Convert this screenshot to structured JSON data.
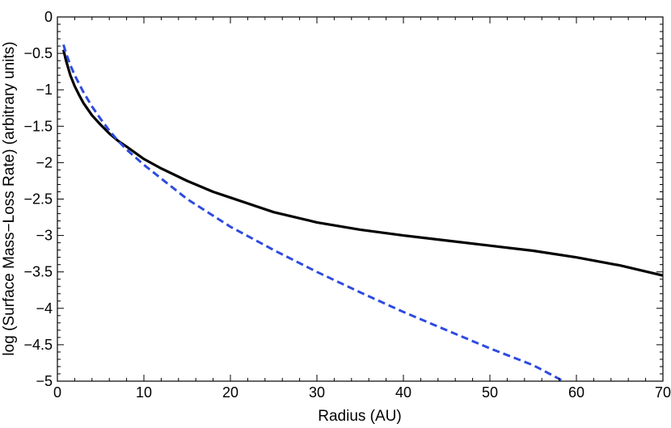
{
  "chart_data": {
    "type": "line",
    "xlabel": "Radius (AU)",
    "ylabel": "log (Surface Mass−Loss Rate) (arbitrary units)",
    "xlim": [
      0,
      70
    ],
    "ylim": [
      -5,
      0
    ],
    "x_ticks": [
      0,
      10,
      20,
      30,
      40,
      50,
      60,
      70
    ],
    "x_tick_labels": [
      "0",
      "10",
      "20",
      "30",
      "40",
      "50",
      "60",
      "70"
    ],
    "y_ticks": [
      0,
      -0.5,
      -1,
      -1.5,
      -2,
      -2.5,
      -3,
      -3.5,
      -4,
      -4.5,
      -5
    ],
    "y_tick_labels": [
      "0",
      "−0.5",
      "−1",
      "−1.5",
      "−2",
      "−2.5",
      "−3",
      "−3.5",
      "−4",
      "−4.5",
      "−5"
    ],
    "grid": false,
    "series": [
      {
        "style": "solid",
        "color": "#000000",
        "x": [
          0.7,
          1.0,
          1.5,
          2.0,
          2.5,
          3.0,
          4.0,
          5.0,
          6.0,
          7.0,
          8.0,
          10.0,
          12.0,
          15.0,
          18.0,
          20.0,
          25.0,
          30.0,
          35.0,
          40.0,
          45.0,
          50.0,
          55.0,
          60.0,
          65.0,
          70.0
        ],
        "y": [
          -0.45,
          -0.6,
          -0.8,
          -0.95,
          -1.07,
          -1.18,
          -1.35,
          -1.48,
          -1.6,
          -1.7,
          -1.78,
          -1.95,
          -2.08,
          -2.25,
          -2.4,
          -2.48,
          -2.68,
          -2.82,
          -2.92,
          -3.0,
          -3.07,
          -3.14,
          -3.21,
          -3.3,
          -3.41,
          -3.55
        ]
      },
      {
        "style": "dashed",
        "color": "#2e4be0",
        "x": [
          0.7,
          1.0,
          1.5,
          2.0,
          3.0,
          4.0,
          5.0,
          6.0,
          7.0,
          8.0,
          10.0,
          15.0,
          20.0,
          25.0,
          30.0,
          35.0,
          40.0,
          45.0,
          50.0,
          55.0,
          58.5
        ],
        "y": [
          -0.38,
          -0.5,
          -0.66,
          -0.8,
          -1.03,
          -1.23,
          -1.4,
          -1.56,
          -1.7,
          -1.82,
          -2.03,
          -2.5,
          -2.88,
          -3.2,
          -3.5,
          -3.78,
          -4.05,
          -4.3,
          -4.55,
          -4.78,
          -5.0
        ]
      }
    ]
  }
}
